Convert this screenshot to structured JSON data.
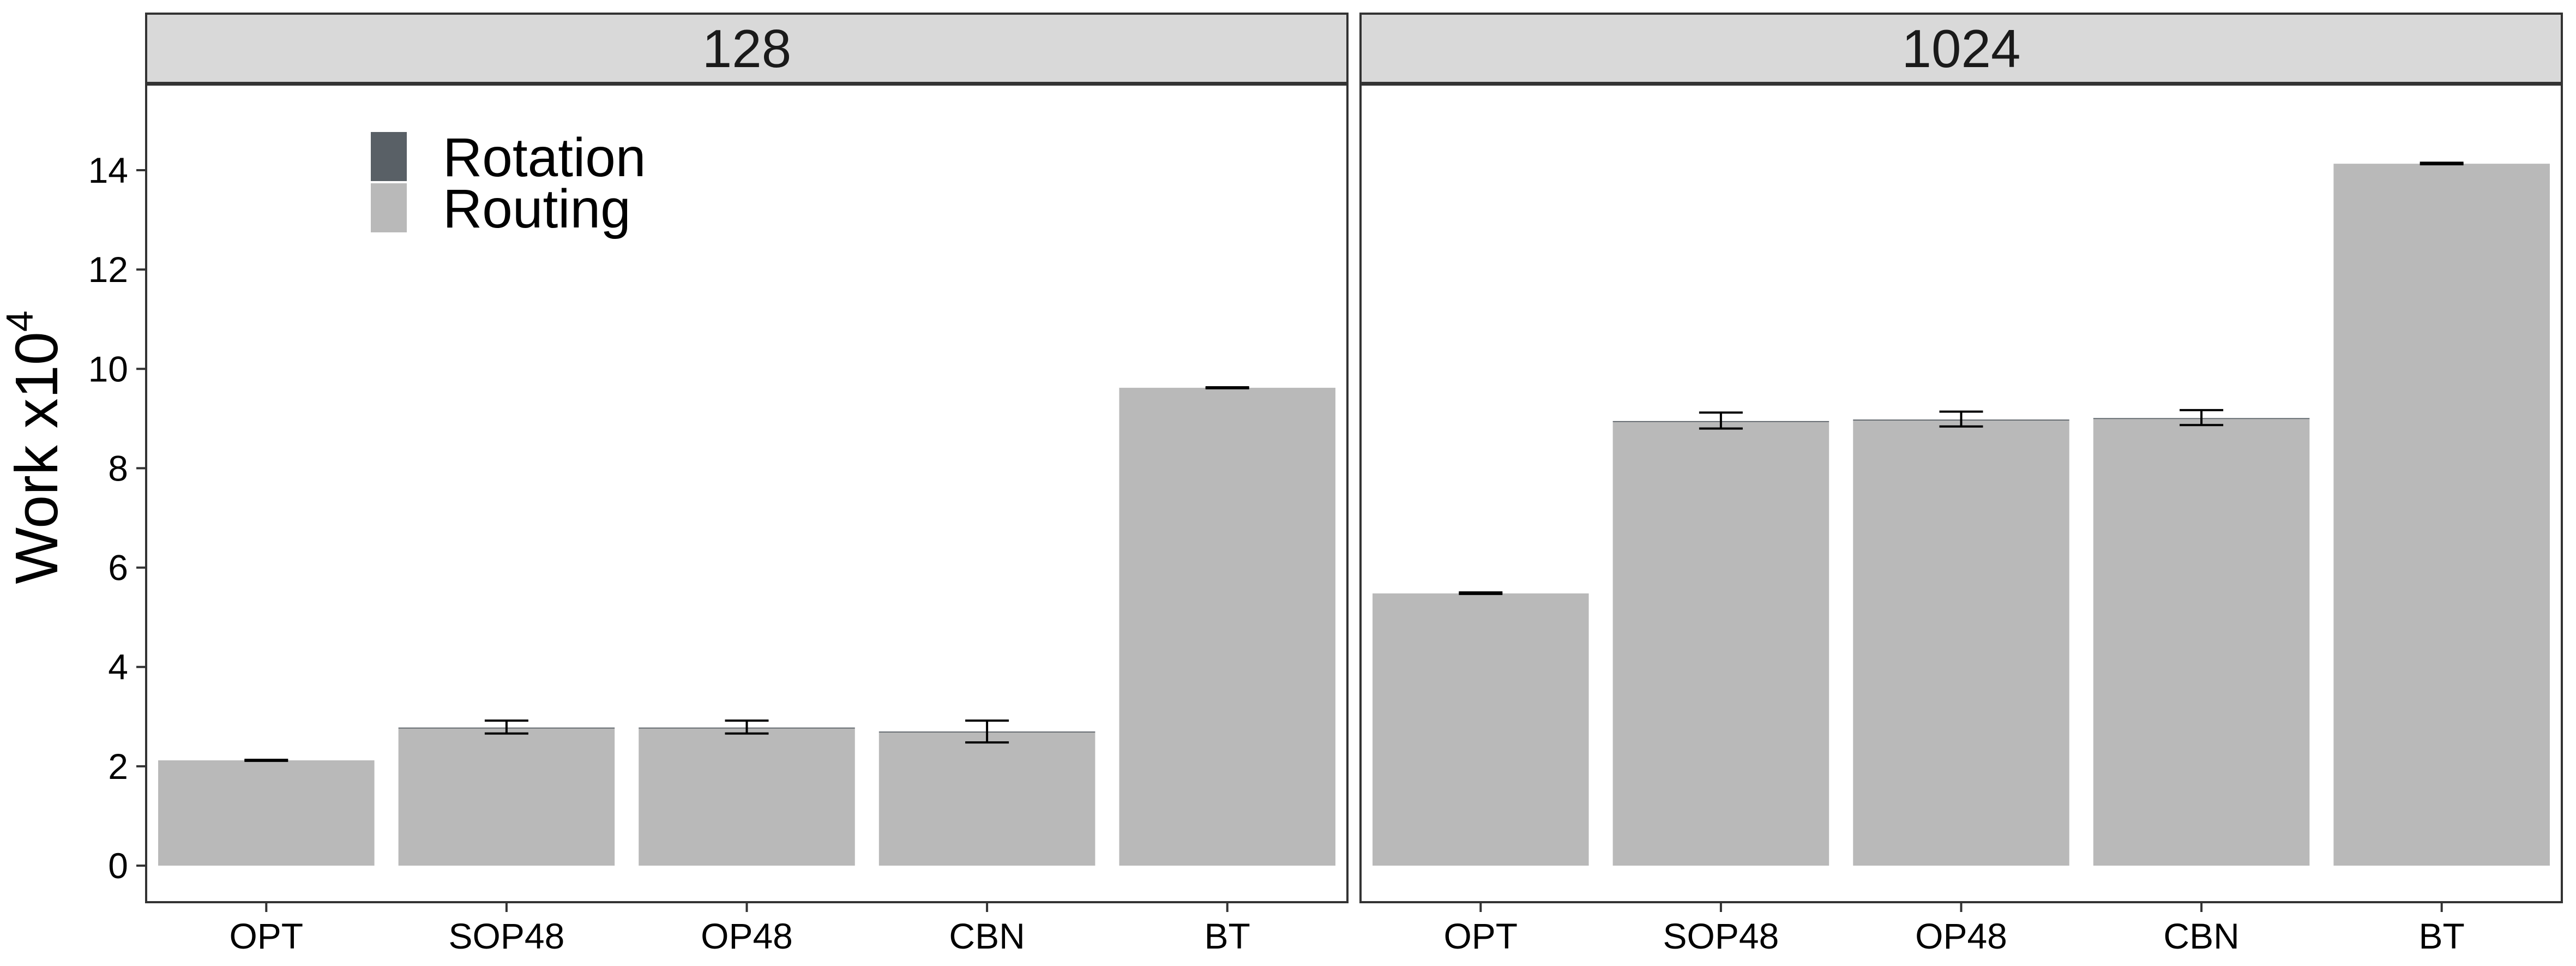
{
  "chart_data": {
    "type": "bar",
    "stacked": true,
    "ylabel": "Work x10",
    "ylabel_superscript": "4",
    "ylim": [
      0,
      15.5
    ],
    "yticks": [
      0,
      2,
      4,
      6,
      8,
      10,
      12,
      14
    ],
    "ytick_labels": [
      "0",
      "2",
      "4",
      "6",
      "8",
      "10",
      "12",
      "14"
    ],
    "categories": [
      "OPT",
      "SOP48",
      "OP48",
      "CBN",
      "BT"
    ],
    "legend": {
      "placement": "top-left inside first panel",
      "entries": [
        {
          "label": "Rotation",
          "color": "#596066"
        },
        {
          "label": "Routing",
          "color": "#b9b9b9"
        }
      ]
    },
    "colors": {
      "rotation": "#596066",
      "routing": "#b9b9b9",
      "strip": "#d9d9d9",
      "error_bar": "#000000"
    },
    "grid": false,
    "panels": [
      {
        "title": "128",
        "series": [
          {
            "name": "Rotation",
            "values": [
              0,
              0.02,
              0.02,
              0.02,
              0
            ]
          },
          {
            "name": "Routing",
            "values": [
              2.12,
              2.76,
              2.76,
              2.68,
              9.62
            ]
          }
        ],
        "totals": [
          2.12,
          2.78,
          2.78,
          2.7,
          9.62
        ],
        "error_low": [
          2.11,
          2.66,
          2.66,
          2.48,
          9.61
        ],
        "error_high": [
          2.13,
          2.92,
          2.92,
          2.92,
          9.63
        ]
      },
      {
        "title": "1024",
        "series": [
          {
            "name": "Rotation",
            "values": [
              0,
              0.02,
              0.02,
              0.02,
              0
            ]
          },
          {
            "name": "Routing",
            "values": [
              5.48,
              8.93,
              8.96,
              8.99,
              14.13
            ]
          }
        ],
        "totals": [
          5.48,
          8.95,
          8.98,
          9.01,
          14.13
        ],
        "error_low": [
          5.47,
          8.8,
          8.84,
          8.87,
          14.12
        ],
        "error_high": [
          5.5,
          9.12,
          9.14,
          9.17,
          14.15
        ]
      }
    ]
  }
}
